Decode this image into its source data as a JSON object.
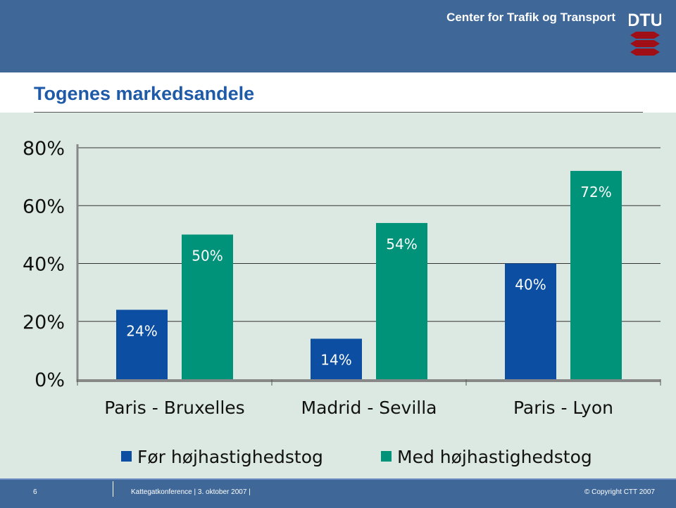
{
  "header": {
    "org": "Center for Trafik og Transport",
    "logo_text": "DTU"
  },
  "slide": {
    "title": "Togenes markedsandele"
  },
  "footer": {
    "page": "6",
    "event": "Kattegatkonference |  3. oktober 2007 |",
    "copyright": "© Copyright CTT 2007"
  },
  "chart_data": {
    "type": "bar",
    "title": "Togenes markedsandele",
    "categories": [
      "Paris - Bruxelles",
      "Madrid - Sevilla",
      "Paris - Lyon"
    ],
    "series": [
      {
        "name": "Før højhastighedstog",
        "values": [
          24,
          14,
          40
        ],
        "labels": [
          "24%",
          "14%",
          "40%"
        ],
        "color": "#0b4ea2"
      },
      {
        "name": "Med højhastighedstog",
        "values": [
          50,
          54,
          72
        ],
        "labels": [
          "50%",
          "54%",
          "72%"
        ],
        "color": "#00937a"
      }
    ],
    "ylim": [
      0,
      80
    ],
    "yticks": [
      0,
      20,
      40,
      60,
      80
    ],
    "ytick_labels": [
      "0%",
      "20%",
      "40%",
      "60%",
      "80%"
    ],
    "xlabel": "",
    "ylabel": "",
    "grid": true,
    "legend": "bottom"
  }
}
